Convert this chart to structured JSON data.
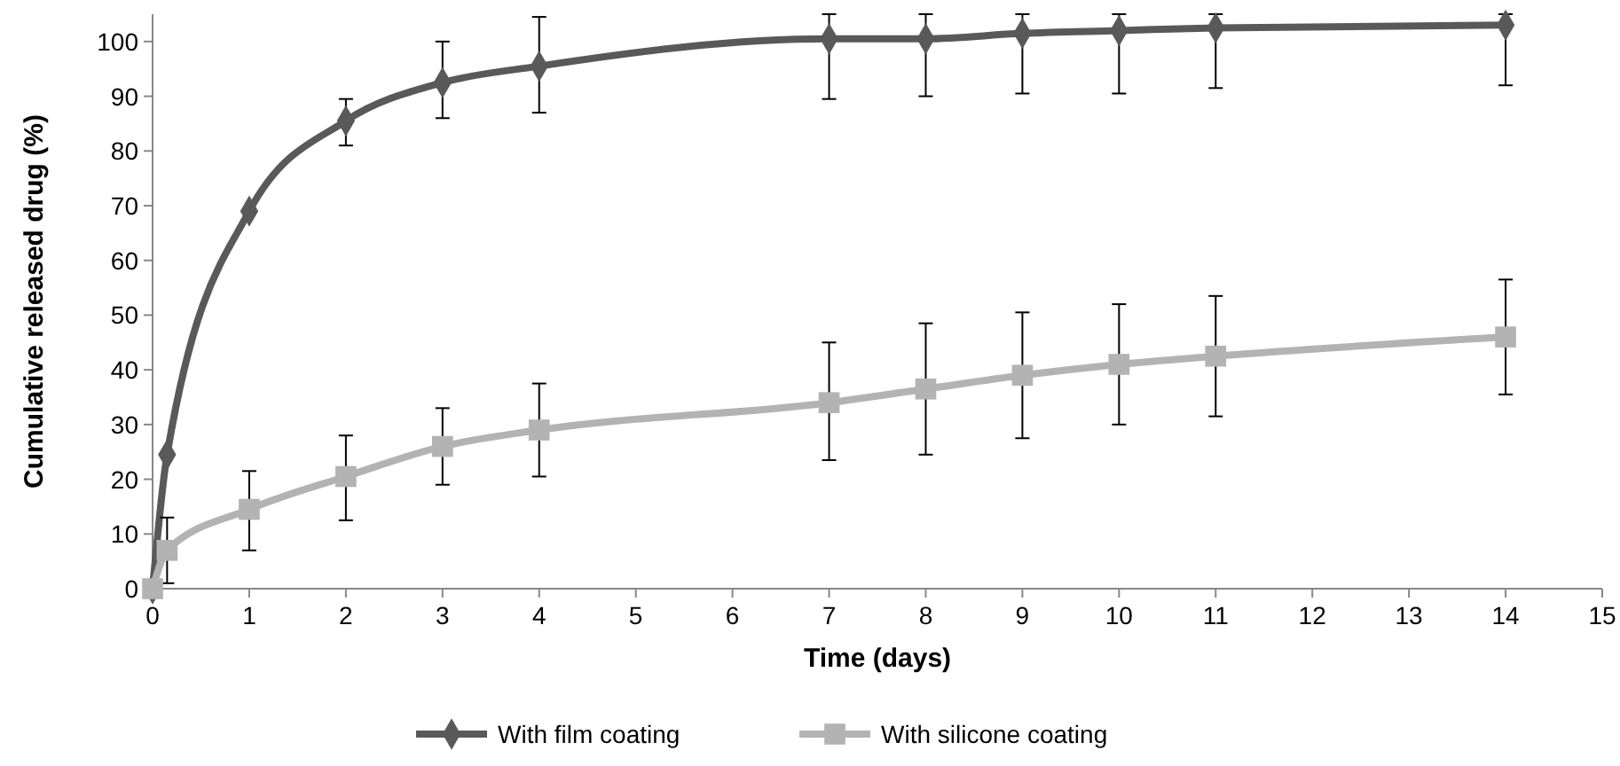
{
  "chart_data": {
    "type": "line",
    "xlabel": "Time (days)",
    "ylabel": "Cumulative released drug (%)",
    "xlim": [
      0,
      15
    ],
    "xticks": [
      0,
      1,
      2,
      3,
      4,
      5,
      6,
      7,
      8,
      9,
      10,
      11,
      12,
      13,
      14,
      15
    ],
    "ylim": [
      0,
      105
    ],
    "yticks": [
      0,
      10,
      20,
      30,
      40,
      50,
      60,
      70,
      80,
      90,
      100
    ],
    "grid": false,
    "legend": "bottom",
    "line_style": "solid",
    "x": [
      0,
      0.15,
      1,
      2,
      3,
      4,
      7,
      8,
      9,
      10,
      11,
      14
    ],
    "series": [
      {
        "name": "With film coating",
        "color": "#595959",
        "marker": "diamond",
        "values": [
          0,
          24.5,
          69,
          85.5,
          92.5,
          95.5,
          100.5,
          100.5,
          101.5,
          102,
          102.5,
          103
        ],
        "errors": [
          null,
          null,
          null,
          [
            81,
            89.5
          ],
          [
            86,
            100
          ],
          [
            87,
            104.5
          ],
          [
            89.5,
            105
          ],
          [
            90,
            105
          ],
          [
            90.5,
            105
          ],
          [
            90.5,
            105
          ],
          [
            91.5,
            105
          ],
          [
            92,
            105
          ]
        ]
      },
      {
        "name": "With silicone coating",
        "color": "#b3b3b3",
        "marker": "square",
        "values": [
          0,
          7,
          14.5,
          20.5,
          26,
          29,
          34,
          36.5,
          39,
          41,
          42.5,
          46
        ],
        "errors": [
          null,
          [
            1,
            13
          ],
          [
            7,
            21.5
          ],
          [
            12.5,
            28
          ],
          [
            19,
            33
          ],
          [
            20.5,
            37.5
          ],
          [
            23.5,
            45
          ],
          [
            24.5,
            48.5
          ],
          [
            27.5,
            50.5
          ],
          [
            30,
            52
          ],
          [
            31.5,
            53.5
          ],
          [
            35.5,
            56.5
          ]
        ]
      }
    ]
  }
}
